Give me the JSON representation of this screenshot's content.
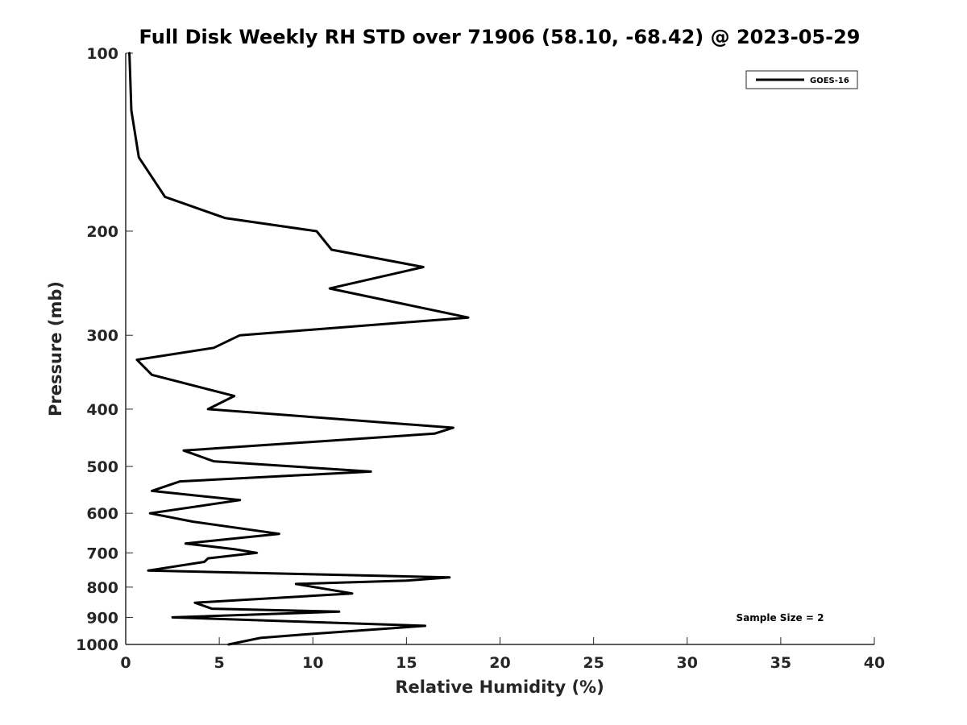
{
  "chart_data": {
    "type": "line",
    "title": "Full Disk Weekly RH STD over 71906 (58.10, -68.42) @ 2023-05-29",
    "xlabel": "Relative Humidity (%)",
    "ylabel": "Pressure (mb)",
    "xlim": [
      0,
      40
    ],
    "ylim": [
      100,
      1000
    ],
    "y_scale": "log",
    "y_reversed": true,
    "x_ticks": [
      0,
      5,
      10,
      15,
      20,
      25,
      30,
      35,
      40
    ],
    "y_ticks": [
      100,
      200,
      300,
      400,
      500,
      600,
      700,
      800,
      900,
      1000
    ],
    "grid": false,
    "legend_position": "top-right",
    "series": [
      {
        "name": "GOES-16",
        "color": "#000000",
        "points": [
          [
            0.2,
            100
          ],
          [
            0.3,
            125
          ],
          [
            0.7,
            150
          ],
          [
            2.1,
            175
          ],
          [
            5.3,
            190
          ],
          [
            10.2,
            200
          ],
          [
            11.0,
            215
          ],
          [
            15.9,
            230
          ],
          [
            10.9,
            250
          ],
          [
            18.3,
            280
          ],
          [
            6.1,
            300
          ],
          [
            4.7,
            315
          ],
          [
            0.6,
            330
          ],
          [
            1.4,
            350
          ],
          [
            5.8,
            380
          ],
          [
            4.4,
            400
          ],
          [
            17.5,
            430
          ],
          [
            16.5,
            440
          ],
          [
            3.1,
            470
          ],
          [
            4.7,
            490
          ],
          [
            13.1,
            510
          ],
          [
            2.9,
            530
          ],
          [
            1.4,
            550
          ],
          [
            6.1,
            570
          ],
          [
            1.3,
            600
          ],
          [
            3.6,
            620
          ],
          [
            8.2,
            650
          ],
          [
            3.2,
            675
          ],
          [
            5.8,
            690
          ],
          [
            7.0,
            700
          ],
          [
            4.4,
            715
          ],
          [
            4.2,
            725
          ],
          [
            1.2,
            750
          ],
          [
            17.3,
            770
          ],
          [
            15.0,
            780
          ],
          [
            9.1,
            790
          ],
          [
            12.1,
            820
          ],
          [
            3.7,
            850
          ],
          [
            4.6,
            870
          ],
          [
            11.4,
            880
          ],
          [
            2.5,
            900
          ],
          [
            16.0,
            930
          ],
          [
            9.9,
            960
          ],
          [
            7.2,
            975
          ],
          [
            5.5,
            1000
          ]
        ]
      }
    ],
    "annotations": [
      {
        "text": "Sample Size = 2",
        "position": "bottom-right"
      }
    ]
  }
}
